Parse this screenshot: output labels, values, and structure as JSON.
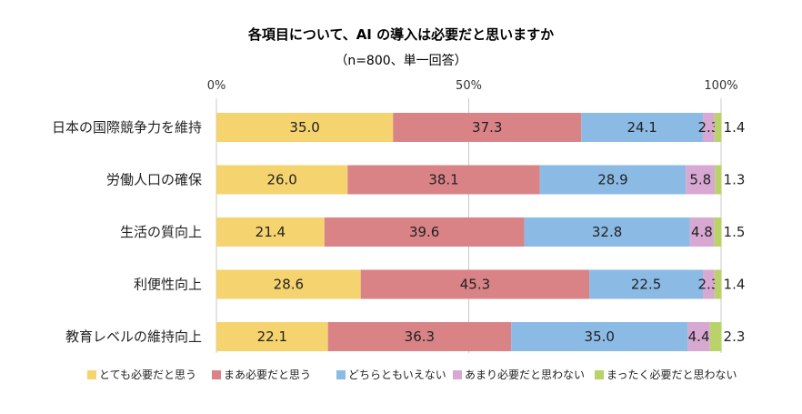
{
  "chart_data": {
    "type": "bar",
    "orientation": "horizontal",
    "stacked": true,
    "title": "各項目について、AI の導入は必要だと思いますか",
    "subtitle": "（n=800、単一回答）",
    "xlim": [
      0,
      100
    ],
    "x_ticks": [
      "0%",
      "50%",
      "100%"
    ],
    "x_tick_values": [
      0,
      50,
      100
    ],
    "grid": "vertical",
    "legend_position": "bottom",
    "categories": [
      "日本の国際競争力を維持",
      "労働人口の確保",
      "生活の質向上",
      "利便性向上",
      "教育レベルの維持向上"
    ],
    "series": [
      {
        "name": "とても必要だと思う",
        "color": "#F5D36E",
        "values": [
          35.0,
          26.0,
          21.4,
          28.6,
          22.1
        ],
        "labels": [
          "35.0",
          "26.0",
          "21.4",
          "28.6",
          "22.1"
        ]
      },
      {
        "name": "まあ必要だと思う",
        "color": "#D98387",
        "values": [
          37.3,
          38.1,
          39.6,
          45.3,
          36.3
        ],
        "labels": [
          "37.3",
          "38.1",
          "39.6",
          "45.3",
          "36.3"
        ]
      },
      {
        "name": "どちらともいえない",
        "color": "#8BBBE5",
        "values": [
          24.1,
          28.9,
          32.8,
          22.5,
          35.0
        ],
        "labels": [
          "24.1",
          "28.9",
          "32.8",
          "22.5",
          "35.0"
        ]
      },
      {
        "name": "あまり必要だと思わない",
        "color": "#D7A8D2",
        "values": [
          2.3,
          5.8,
          4.8,
          2.3,
          4.4
        ],
        "labels": [
          "2.3",
          "5.8",
          "4.8",
          "2.3",
          "4.4"
        ]
      },
      {
        "name": "まったく必要だと思わない",
        "color": "#B9D26A",
        "values": [
          1.4,
          1.3,
          1.5,
          1.4,
          2.3
        ],
        "labels": [
          "1.4",
          "1.3",
          "1.5",
          "1.4",
          "2.3"
        ]
      }
    ]
  }
}
